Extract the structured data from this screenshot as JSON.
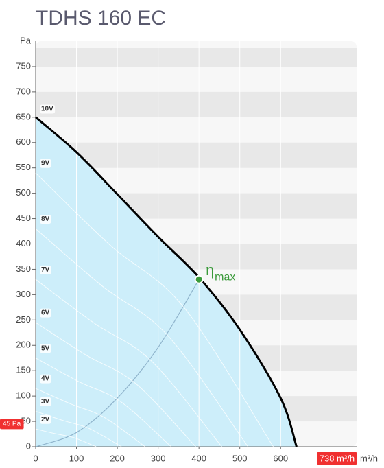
{
  "chart_data": {
    "type": "line",
    "title": "TDHS 160 EC",
    "y_label": "Pa",
    "x_label": "m³/h",
    "xlim": [
      0,
      786
    ],
    "ylim": [
      0,
      800
    ],
    "xticks": [
      0,
      100,
      200,
      300,
      400,
      500,
      600
    ],
    "yticks": [
      0,
      50,
      100,
      150,
      200,
      250,
      300,
      350,
      400,
      450,
      500,
      550,
      600,
      650,
      700,
      750
    ],
    "series": [
      {
        "name": "10V",
        "color": "#000000",
        "x": [
          0,
          100,
          200,
          300,
          400,
          500,
          600,
          639
        ],
        "values": [
          650,
          581,
          498,
          414,
          334,
          231,
          96,
          0
        ]
      },
      {
        "name": "9V",
        "color": "#ffffff",
        "x": [
          0,
          182,
          364,
          582
        ],
        "values": [
          540,
          398,
          274,
          0
        ]
      },
      {
        "name": "8V",
        "color": "#ffffff",
        "x": [
          0,
          163,
          325,
          520
        ],
        "values": [
          430,
          317,
          218,
          0
        ]
      },
      {
        "name": "7V",
        "color": "#ffffff",
        "x": [
          0,
          143,
          285,
          456
        ],
        "values": [
          330,
          244,
          168,
          0
        ]
      },
      {
        "name": "6V",
        "color": "#ffffff",
        "x": [
          0,
          123,
          246,
          392
        ],
        "values": [
          245,
          181,
          124,
          0
        ]
      },
      {
        "name": "5V",
        "color": "#ffffff",
        "x": [
          0,
          104,
          208,
          332
        ],
        "values": [
          175,
          129,
          89,
          0
        ]
      },
      {
        "name": "4V",
        "color": "#ffffff",
        "x": [
          0,
          84,
          168,
          268
        ],
        "values": [
          115,
          85,
          58,
          0
        ]
      },
      {
        "name": "3V",
        "color": "#ffffff",
        "x": [
          0,
          66,
          131,
          210
        ],
        "values": [
          70,
          52,
          36,
          0
        ]
      },
      {
        "name": "2V",
        "color": "#ffffff",
        "x": [
          0,
          46,
          93,
          148
        ],
        "values": [
          35,
          26,
          18,
          0
        ]
      }
    ],
    "efficiency_line": {
      "color": "#8fb4cc",
      "x": [
        0,
        100,
        200,
        300,
        400
      ],
      "values": [
        0,
        28,
        96,
        196,
        330
      ]
    },
    "eta_max": {
      "x": 400,
      "y": 330,
      "label": "η",
      "sub": "max",
      "color": "#3a9a3a"
    },
    "y_marker": {
      "value": 45,
      "label": "45 Pa"
    },
    "x_marker": {
      "value": 738,
      "label": "738 m³/h"
    },
    "fill_color": "#cdeefa"
  }
}
